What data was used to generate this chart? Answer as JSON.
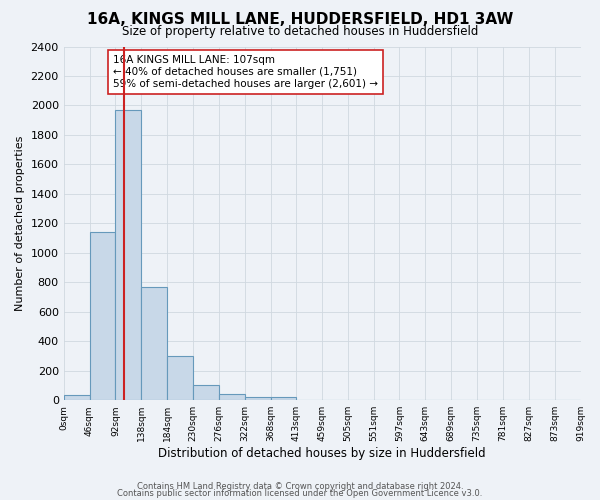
{
  "title": "16A, KINGS MILL LANE, HUDDERSFIELD, HD1 3AW",
  "subtitle": "Size of property relative to detached houses in Huddersfield",
  "xlabel": "Distribution of detached houses by size in Huddersfield",
  "ylabel": "Number of detached properties",
  "bar_edges": [
    0,
    46,
    92,
    138,
    184,
    230,
    276,
    322,
    368,
    413,
    459,
    505,
    551,
    597,
    643,
    689,
    735,
    781,
    827,
    873,
    919
  ],
  "bar_heights": [
    35,
    1140,
    1970,
    770,
    300,
    100,
    45,
    25,
    20,
    0,
    0,
    0,
    0,
    0,
    0,
    0,
    0,
    0,
    0,
    0
  ],
  "bar_color": "#c8d8e8",
  "bar_edgecolor": "#6699bb",
  "bar_linewidth": 0.8,
  "vline_x": 107,
  "vline_color": "#cc2222",
  "vline_linewidth": 1.5,
  "annotation_text": "16A KINGS MILL LANE: 107sqm\n← 40% of detached houses are smaller (1,751)\n59% of semi-detached houses are larger (2,601) →",
  "ylim": [
    0,
    2400
  ],
  "yticks": [
    0,
    200,
    400,
    600,
    800,
    1000,
    1200,
    1400,
    1600,
    1800,
    2000,
    2200,
    2400
  ],
  "xtick_labels": [
    "0sqm",
    "46sqm",
    "92sqm",
    "138sqm",
    "184sqm",
    "230sqm",
    "276sqm",
    "322sqm",
    "368sqm",
    "413sqm",
    "459sqm",
    "505sqm",
    "551sqm",
    "597sqm",
    "643sqm",
    "689sqm",
    "735sqm",
    "781sqm",
    "827sqm",
    "873sqm",
    "919sqm"
  ],
  "grid_color": "#d0d8e0",
  "bg_color": "#eef2f7",
  "footer1": "Contains HM Land Registry data © Crown copyright and database right 2024.",
  "footer2": "Contains public sector information licensed under the Open Government Licence v3.0."
}
